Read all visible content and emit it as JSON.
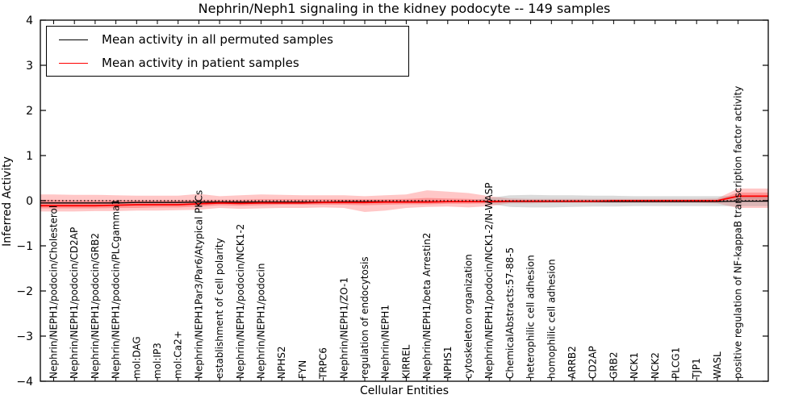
{
  "legend": {
    "entries": [
      {
        "label": "Mean activity in all permuted samples",
        "color": "#000000"
      },
      {
        "label": "Mean activity in patient samples",
        "color": "#ff0000"
      }
    ]
  },
  "chart_data": {
    "type": "line",
    "title": "Nephrin/Neph1 signaling in the kidney podocyte -- 149 samples",
    "xlabel": "Cellular Entities",
    "ylabel": "Inferred Activity",
    "ylim": [
      -4,
      4
    ],
    "yticks": [
      4,
      3,
      2,
      1,
      0,
      -1,
      -2,
      -3,
      -4
    ],
    "grid": false,
    "zero_line": true,
    "legend_position": "upper left",
    "categories": [
      "Nephrin/NEPH1/podocin/Cholesterol",
      "Nephrin/NEPH1/podocin/CD2AP",
      "Nephrin/NEPH1/podocin/GRB2",
      "Nephrin/NEPH1/podocin/PLCgamma1",
      "mol:DAG",
      "mol:IP3",
      "mol:Ca2+",
      "Nephrin/NEPH1Par3/Par6/Atypical PKCs",
      "establishment of cell polarity",
      "Nephrin/NEPH1/podocin/NCK1-2",
      "Nephrin/NEPH1/podocin",
      "NPHS2",
      "FYN",
      "TRPC6",
      "Nephrin/NEPH1/ZO-1",
      "regulation of endocytosis",
      "Nephrin/NEPH1",
      "KIRREL",
      "Nephrin/NEPH1/beta Arrestin2",
      "NPHS1",
      "cytoskeleton organization",
      "Nephrin/NEPH1/podocin/NCK1-2/N-WASP",
      "ChemicalAbstracts:57-88-5",
      "heterophilic cell adhesion",
      "homophilic cell adhesion",
      "ARRB2",
      "CD2AP",
      "GRB2",
      "NCK1",
      "NCK2",
      "PLCG1",
      "TJP1",
      "WASL",
      "positive regulation of NF-kappaB transcription factor activity"
    ],
    "series": [
      {
        "name": "Mean activity in all permuted samples",
        "color": "#000000",
        "values": [
          -0.05,
          -0.05,
          -0.05,
          -0.05,
          -0.04,
          -0.04,
          -0.04,
          -0.03,
          -0.03,
          -0.03,
          -0.03,
          -0.03,
          -0.03,
          -0.03,
          -0.02,
          -0.02,
          -0.02,
          -0.02,
          -0.02,
          -0.02,
          -0.02,
          -0.02,
          -0.02,
          -0.02,
          -0.02,
          -0.02,
          -0.02,
          -0.02,
          -0.02,
          -0.02,
          -0.02,
          -0.02,
          -0.02,
          -0.01
        ]
      },
      {
        "name": "Mean activity in patient samples",
        "color": "#ff0000",
        "values": [
          -0.11,
          -0.11,
          -0.11,
          -0.1,
          -0.09,
          -0.09,
          -0.09,
          -0.07,
          -0.05,
          -0.06,
          -0.05,
          -0.05,
          -0.05,
          -0.04,
          -0.04,
          -0.04,
          -0.03,
          -0.03,
          -0.03,
          -0.02,
          -0.02,
          -0.02,
          -0.01,
          -0.01,
          -0.01,
          -0.01,
          -0.01,
          0.0,
          0.0,
          0.0,
          0.0,
          0.0,
          0.0,
          0.1
        ]
      }
    ],
    "bands": [
      {
        "name": "patient-samples-outer-band",
        "color": "#ff0000",
        "opacity": 0.22,
        "extend_left": true,
        "upper": [
          0.14,
          0.13,
          0.13,
          0.12,
          0.11,
          0.11,
          0.11,
          0.15,
          0.1,
          0.12,
          0.14,
          0.13,
          0.12,
          0.12,
          0.12,
          0.1,
          0.12,
          0.14,
          0.23,
          0.2,
          0.17,
          0.1,
          0.05,
          0.04,
          0.04,
          0.04,
          0.04,
          0.04,
          0.04,
          0.04,
          0.04,
          0.04,
          0.05,
          0.27
        ],
        "lower": [
          -0.24,
          -0.24,
          -0.23,
          -0.23,
          -0.22,
          -0.22,
          -0.21,
          -0.2,
          -0.16,
          -0.18,
          -0.17,
          -0.16,
          -0.16,
          -0.15,
          -0.16,
          -0.25,
          -0.22,
          -0.16,
          -0.14,
          -0.13,
          -0.15,
          -0.12,
          -0.06,
          -0.06,
          -0.05,
          -0.05,
          -0.05,
          -0.05,
          -0.05,
          -0.05,
          -0.05,
          -0.05,
          -0.06,
          -0.16
        ]
      },
      {
        "name": "patient-samples-inner-band",
        "color": "#ff0000",
        "opacity": 0.25,
        "extend_left": true,
        "upper": [
          0.02,
          0.01,
          0.01,
          0.01,
          0.01,
          0.01,
          0.01,
          0.02,
          0.02,
          0.02,
          0.03,
          0.03,
          0.03,
          0.03,
          0.03,
          0.03,
          0.03,
          0.04,
          0.06,
          0.05,
          0.04,
          0.02,
          0.01,
          0.01,
          0.01,
          0.01,
          0.01,
          0.01,
          0.01,
          0.01,
          0.01,
          0.01,
          0.02,
          0.18
        ],
        "lower": [
          -0.17,
          -0.17,
          -0.17,
          -0.16,
          -0.16,
          -0.15,
          -0.15,
          -0.13,
          -0.1,
          -0.11,
          -0.1,
          -0.09,
          -0.09,
          -0.09,
          -0.09,
          -0.1,
          -0.09,
          -0.08,
          -0.08,
          -0.07,
          -0.07,
          -0.06,
          -0.03,
          -0.03,
          -0.03,
          -0.03,
          -0.03,
          -0.03,
          -0.03,
          -0.03,
          -0.03,
          -0.03,
          -0.03,
          0.01
        ]
      },
      {
        "name": "permuted-samples-band",
        "color": "#999999",
        "opacity": 0.35,
        "extend_left": false,
        "upper": [
          0,
          0,
          0,
          0,
          0,
          0,
          0,
          0,
          0,
          0,
          0,
          0,
          0,
          0,
          0,
          0,
          0,
          0,
          0,
          0,
          0,
          0.06,
          0.12,
          0.13,
          0.12,
          0.12,
          0.11,
          0.11,
          0.1,
          0.1,
          0.1,
          0.1,
          0.1,
          0.1
        ],
        "lower": [
          0,
          0,
          0,
          0,
          0,
          0,
          0,
          0,
          0,
          0,
          0,
          0,
          0,
          0,
          0,
          0,
          0,
          0,
          0,
          0,
          0,
          -0.07,
          -0.14,
          -0.15,
          -0.15,
          -0.14,
          -0.13,
          -0.13,
          -0.12,
          -0.12,
          -0.12,
          -0.12,
          -0.12,
          -0.12
        ]
      }
    ]
  }
}
